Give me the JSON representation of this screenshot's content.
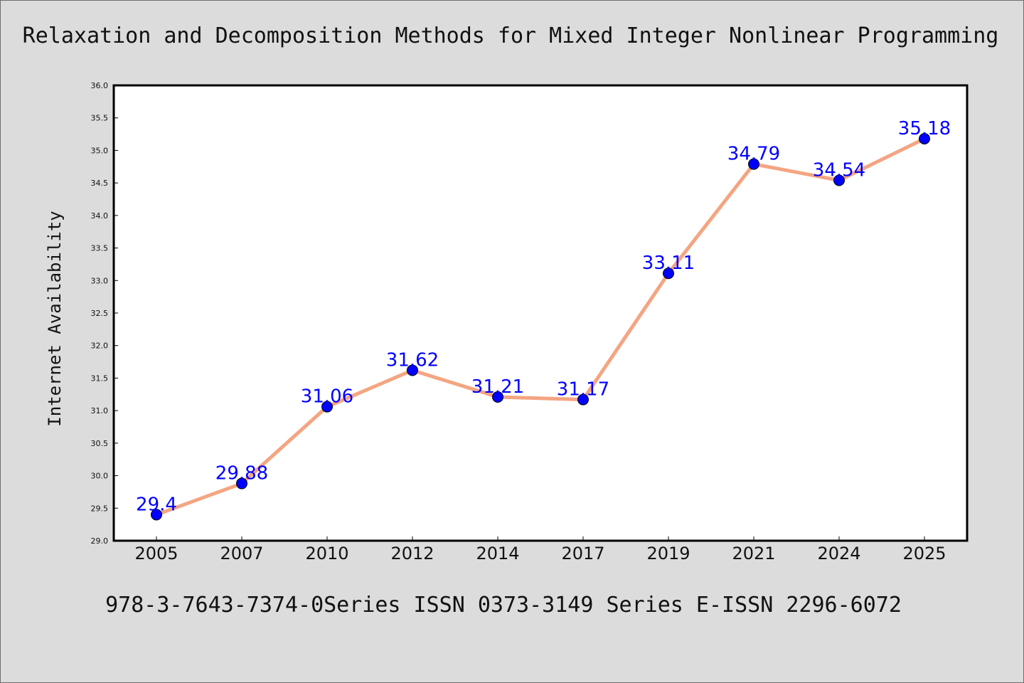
{
  "chart_data": {
    "type": "line",
    "title": "Relaxation and Decomposition Methods for Mixed Integer Nonlinear Programming",
    "caption": "978-3-7643-7374-0Series ISSN 0373-3149 Series E-ISSN 2296-6072",
    "xlabel": "",
    "ylabel": "Internet Availability",
    "categories": [
      "2005",
      "2007",
      "2010",
      "2012",
      "2014",
      "2017",
      "2019",
      "2021",
      "2024",
      "2025"
    ],
    "values": [
      29.4,
      29.88,
      31.06,
      31.62,
      31.21,
      31.17,
      33.11,
      34.79,
      34.54,
      35.18
    ],
    "data_labels": [
      "29.4",
      "29.88",
      "31.06",
      "31.62",
      "31.21",
      "31.17",
      "33.11",
      "34.79",
      "34.54",
      "35.18"
    ],
    "ylim": [
      29.0,
      36.0
    ],
    "yticks": [
      "29.0",
      "29.5",
      "30.0",
      "30.5",
      "31.0",
      "31.5",
      "32.0",
      "32.5",
      "33.0",
      "33.5",
      "34.0",
      "34.5",
      "35.0",
      "35.5",
      "36.0"
    ],
    "grid": false,
    "legend": "none",
    "colors": {
      "line": "#f4a582",
      "marker": "#0000ff",
      "label": "#0000ff",
      "background": "#dcdcdc",
      "plot_background": "#ffffff"
    }
  }
}
